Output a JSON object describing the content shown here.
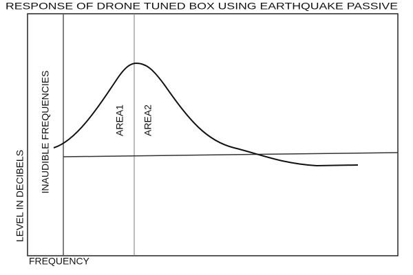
{
  "title": "RESPONSE OF DRONE TUNED BOX USING EARTHQUAKE PASSIVE",
  "y_axis_label": "LEVEL IN DECIBELS",
  "x_axis_label": "FREQUENCY",
  "regions": [
    "INAUDIBLE FREQUENCIES",
    "AREA1",
    "AREA2"
  ]
}
